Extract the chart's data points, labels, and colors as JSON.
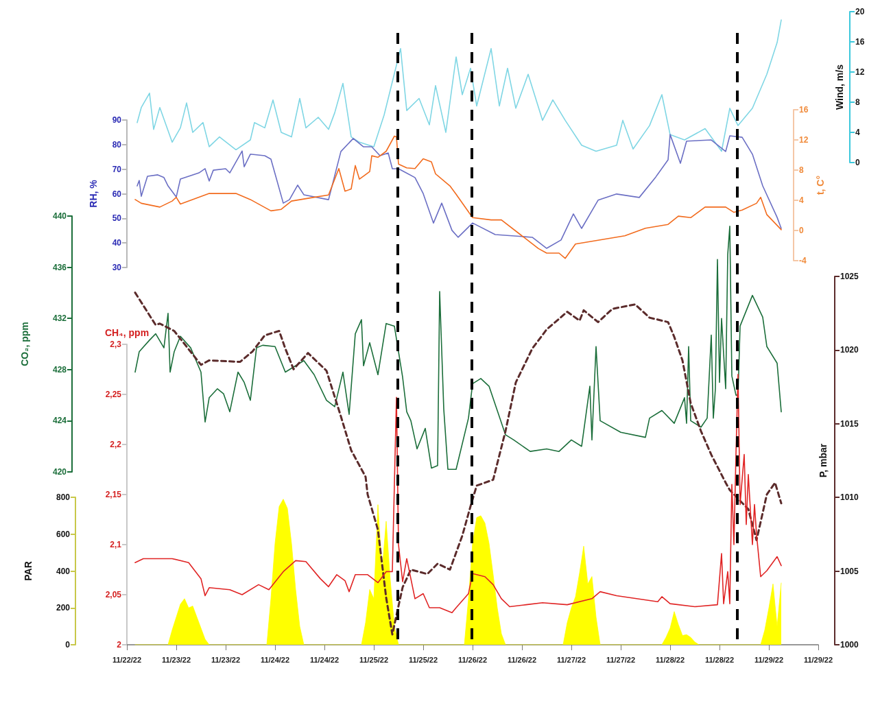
{
  "chart_data": [
    {
      "type": "line",
      "ylabel": "RH, %",
      "y2label": "t, C°",
      "y3label": "Wind, m/s",
      "tick_labels": "y",
      "xlim": [
        "--11-22T12:00",
        "--11-29T12:00"
      ],
      "ylim": [
        30,
        90
      ],
      "yticks": [
        30,
        40,
        50,
        60,
        70,
        80,
        90
      ],
      "y2lim": [
        -4,
        16
      ],
      "y2ticks": [
        -4,
        0,
        4,
        8,
        12,
        16
      ],
      "y3lim": [
        0,
        20
      ],
      "y3ticks": [
        0,
        4,
        8,
        12,
        16,
        20
      ],
      "series": [
        {
          "axis": "y3",
          "color": "#7fd6e4",
          "x": [
            "--11-22T14:30",
            "--11-22T15:30",
            "--11-22T17:30",
            "--11-22T18:30",
            "--11-22T20:00",
            "--11-22T23:00",
            "--11-23T01:00",
            "--11-23T02:30",
            "--11-23T04:00",
            "--11-23T06:30",
            "--11-23T08:00",
            "--11-23T10:30",
            "--11-23T14:30",
            "--11-23T18:00",
            "--11-23T19:00",
            "--11-23T21:30",
            "--11-23T23:30",
            "--11-24T01:30",
            "--11-24T04:00",
            "--11-24T06:00",
            "--11-24T07:30",
            "--11-24T10:30",
            "--11-24T13:00",
            "--11-24T14:30",
            "--11-24T16:30",
            "--11-24T18:30",
            "--11-24T20:30",
            "--11-25T00:00",
            "--11-25T02:30",
            "--11-25T05:00",
            "--11-25T06:30",
            "--11-25T08:00",
            "--11-25T11:00",
            "--11-25T13:30",
            "--11-25T15:00",
            "--11-25T17:30",
            "--11-25T20:00",
            "--11-25T21:30",
            "--11-25T23:30",
            "--11-26T01:00",
            "--11-26T04:30",
            "--11-26T06:30",
            "--11-26T08:30",
            "--11-26T10:30",
            "--11-26T13:30",
            "--11-26T17:00",
            "--11-26T19:30",
            "--11-26T22:30",
            "--11-27T02:30",
            "--11-27T06:00",
            "--11-27T11:00",
            "--11-27T12:30",
            "--11-27T15:00",
            "--11-27T19:00",
            "--11-27T22:00",
            "--11-28T00:00",
            "--11-28T03:30",
            "--11-28T08:30",
            "--11-28T12:30",
            "--11-28T14:30",
            "--11-28T16:30",
            "--11-28T20:00",
            "--11-28T23:30",
            "--11-29T02:00",
            "--11-29T03:00"
          ],
          "values": [
            5.3,
            7.3,
            9.2,
            4.4,
            7.3,
            2.7,
            4.6,
            7.9,
            4.0,
            5.3,
            2.1,
            3.4,
            1.7,
            3.0,
            5.3,
            4.6,
            8.3,
            4.0,
            3.4,
            8.5,
            4.6,
            6.0,
            4.4,
            6.6,
            10.5,
            3.4,
            2.7,
            2.1,
            6.3,
            11.8,
            15.1,
            6.9,
            8.5,
            5.0,
            10.2,
            4.0,
            14.0,
            9.0,
            12.5,
            7.5,
            15.1,
            7.5,
            12.5,
            7.2,
            11.7,
            5.6,
            8.3,
            5.6,
            2.3,
            1.5,
            2.3,
            5.6,
            1.8,
            4.9,
            9.0,
            3.7,
            3.0,
            4.5,
            1.5,
            7.2,
            4.9,
            7.2,
            11.7,
            15.9,
            18.9
          ]
        },
        {
          "color": "#6b6fc4",
          "x": [
            "--11-22T14:30",
            "--11-22T15:00",
            "--11-22T15:30",
            "--11-22T17:00",
            "--11-22T19:30",
            "--11-22T21:00",
            "--11-22T22:00",
            "--11-23T00:00",
            "--11-23T01:00",
            "--11-23T05:30",
            "--11-23T07:00",
            "--11-23T08:00",
            "--11-23T09:00",
            "--11-23T12:00",
            "--11-23T13:00",
            "--11-23T16:00",
            "--11-23T16:30",
            "--11-23T18:00",
            "--11-23T21:30",
            "--11-23T23:00",
            "--11-24T02:00",
            "--11-24T03:30",
            "--11-24T05:30",
            "--11-24T07:00",
            "--11-24T13:00",
            "--11-24T16:00",
            "--11-24T19:00",
            "--11-24T21:30",
            "--11-24T23:30",
            "--11-25T01:30",
            "--11-25T03:30",
            "--11-25T04:30",
            "--11-25T06:00",
            "--11-25T10:00",
            "--11-25T12:00",
            "--11-25T14:30",
            "--11-25T16:30",
            "--11-25T19:00",
            "--11-25T20:30",
            "--11-26T00:00",
            "--11-26T05:30",
            "--11-26T14:30",
            "--11-26T18:00",
            "--11-26T21:30",
            "--11-27T00:30",
            "--11-27T02:30",
            "--11-27T06:30",
            "--11-27T11:00",
            "--11-27T16:30",
            "--11-27T20:30",
            "--11-27T23:30",
            "--11-28T00:00",
            "--11-28T02:30",
            "--11-28T04:00",
            "--11-28T10:00",
            "--11-28T13:30",
            "--11-28T14:30",
            "--11-28T17:30",
            "--11-28T20:00",
            "--11-28T22:30",
            "--11-29T02:00",
            "--11-29T03:00"
          ],
          "values": [
            63.2,
            65.4,
            59.0,
            67.1,
            67.7,
            66.6,
            63.2,
            58.7,
            66.0,
            68.5,
            70.2,
            65.2,
            69.6,
            70.2,
            68.5,
            77.4,
            71.0,
            76.1,
            75.5,
            74.1,
            56.2,
            57.6,
            63.5,
            59.6,
            57.6,
            77.2,
            82.5,
            79.1,
            79.1,
            75.5,
            76.6,
            70.2,
            70.2,
            66.6,
            60.1,
            48.1,
            56.2,
            45.1,
            42.3,
            48.1,
            43.4,
            42.3,
            37.8,
            41.2,
            51.8,
            45.9,
            57.4,
            59.9,
            58.5,
            66.8,
            73.8,
            84.1,
            72.4,
            81.4,
            81.9,
            77.2,
            83.6,
            83.0,
            76.1,
            63.2,
            50.4,
            45.9
          ]
        },
        {
          "axis": "y2",
          "color": "#f26b1d",
          "x": [
            "--11-22T14:00",
            "--11-22T15:30",
            "--11-22T20:00",
            "--11-22T23:00",
            "--11-23T00:00",
            "--11-23T01:00",
            "--11-23T08:00",
            "--11-23T14:30",
            "--11-23T18:00",
            "--11-23T23:00",
            "--11-24T01:30",
            "--11-24T04:00",
            "--11-24T09:30",
            "--11-24T13:00",
            "--11-24T15:30",
            "--11-24T17:00",
            "--11-24T18:30",
            "--11-24T19:30",
            "--11-24T20:30",
            "--11-24T23:00",
            "--11-24T23:30",
            "--11-25T01:00",
            "--11-25T03:00",
            "--11-25T05:00",
            "--11-25T05:30",
            "--11-25T06:00",
            "--11-25T08:00",
            "--11-25T10:00",
            "--11-25T12:00",
            "--11-25T14:00",
            "--11-25T15:00",
            "--11-25T18:30",
            "--11-25T20:00",
            "--11-26T00:00",
            "--11-26T04:30",
            "--11-26T07:00",
            "--11-26T11:30",
            "--11-26T16:00",
            "--11-26T18:00",
            "--11-26T21:00",
            "--11-26T22:30",
            "--11-27T01:00",
            "--11-27T06:30",
            "--11-27T13:00",
            "--11-27T18:00",
            "--11-27T23:30",
            "--11-28T02:00",
            "--11-28T05:00",
            "--11-28T08:30",
            "--11-28T13:30",
            "--11-28T15:30",
            "--11-28T17:30",
            "--11-28T21:00",
            "--11-28T22:00",
            "--11-28T23:30",
            "--11-29T03:00"
          ],
          "values": [
            4.1,
            3.6,
            3.1,
            3.9,
            4.4,
            3.5,
            4.9,
            4.9,
            4.1,
            2.6,
            2.8,
            3.9,
            4.4,
            4.7,
            8.2,
            5.2,
            5.5,
            8.6,
            6.8,
            7.8,
            9.9,
            9.7,
            10.5,
            12.5,
            12.4,
            8.8,
            8.3,
            8.2,
            9.5,
            9.1,
            7.5,
            5.9,
            4.8,
            1.7,
            1.4,
            1.4,
            -0.5,
            -2.4,
            -3.0,
            -3.0,
            -3.7,
            -1.8,
            -1.3,
            -0.7,
            0.3,
            0.8,
            1.9,
            1.7,
            3.1,
            3.1,
            2.4,
            2.7,
            3.6,
            4.4,
            2.1,
            0.1
          ]
        }
      ]
    },
    {
      "type": "line",
      "ylabel": "CO₂, ppm",
      "tick_labels": "y",
      "xlim": [
        "--11-22T12:00",
        "--11-29T12:00"
      ],
      "ylim": [
        420,
        440
      ],
      "yticks": [
        420,
        424,
        428,
        432,
        436,
        440
      ],
      "series": [
        {
          "color": "#1b6e3a",
          "x": [
            "--11-22T14:00",
            "--11-22T15:00",
            "--11-22T17:30",
            "--11-22T19:00",
            "--11-22T21:00",
            "--11-22T22:00",
            "--11-22T22:30",
            "--11-22T23:30",
            "--11-23T01:00",
            "--11-23T03:30",
            "--11-23T06:00",
            "--11-23T07:00",
            "--11-23T08:00",
            "--11-23T10:00",
            "--11-23T11:30",
            "--11-23T13:00",
            "--11-23T15:00",
            "--11-23T16:30",
            "--11-23T18:00",
            "--11-23T19:30",
            "--11-23T21:00",
            "--11-24T00:00",
            "--11-24T02:30",
            "--11-24T07:00",
            "--11-24T09:30",
            "--11-24T12:30",
            "--11-24T14:30",
            "--11-24T16:30",
            "--11-24T18:00",
            "--11-24T19:30",
            "--11-24T21:00",
            "--11-24T21:30",
            "--11-24T23:00",
            "--11-25T01:00",
            "--11-25T03:00",
            "--11-25T05:00",
            "--11-25T07:00",
            "--11-25T08:00",
            "--11-25T09:00",
            "--11-25T10:30",
            "--11-25T12:30",
            "--11-25T14:00",
            "--11-25T15:30",
            "--11-25T16:00",
            "--11-25T17:00",
            "--11-25T18:00",
            "--11-25T20:00",
            "--11-25T23:00",
            "--11-26T00:00",
            "--11-26T02:00",
            "--11-26T04:00",
            "--11-26T08:00",
            "--11-26T10:00",
            "--11-26T14:00",
            "--11-26T18:00",
            "--11-26T21:00",
            "--11-27T00:00",
            "--11-27T02:30",
            "--11-27T04:30",
            "--11-27T05:00",
            "--11-27T06:00",
            "--11-27T07:00",
            "--11-27T12:00",
            "--11-27T18:00",
            "--11-27T19:00",
            "--11-27T22:00",
            "--11-28T01:00",
            "--11-28T03:30",
            "--11-28T04:00",
            "--11-28T04:30",
            "--11-28T05:00",
            "--11-28T07:30",
            "--11-28T09:00",
            "--11-28T10:00",
            "--11-28T10:30",
            "--11-28T11:00",
            "--11-28T11:30",
            "--11-28T12:00",
            "--11-28T12:30",
            "--11-28T13:30",
            "--11-28T14:00",
            "--11-28T14:30",
            "--11-28T15:00",
            "--11-28T16:00",
            "--11-28T16:30",
            "--11-28T17:00",
            "--11-28T20:00",
            "--11-28T22:30",
            "--11-28T23:30",
            "--11-29T02:00",
            "--11-29T03:00"
          ],
          "values": [
            427.8,
            429.4,
            430.3,
            430.8,
            429.7,
            432.4,
            427.8,
            429.4,
            430.6,
            429.7,
            427.8,
            423.9,
            425.8,
            426.5,
            426.1,
            424.7,
            427.8,
            427.0,
            425.6,
            429.7,
            429.9,
            429.8,
            427.8,
            428.7,
            427.6,
            425.6,
            425.1,
            427.8,
            424.5,
            430.8,
            431.9,
            428.3,
            430.1,
            427.6,
            431.6,
            431.4,
            427.4,
            424.7,
            424.0,
            421.8,
            423.4,
            420.3,
            420.5,
            434.1,
            424.9,
            420.2,
            420.2,
            424.2,
            426.9,
            427.3,
            426.7,
            422.9,
            422.5,
            421.6,
            421.8,
            421.6,
            422.5,
            422.0,
            426.7,
            422.5,
            429.8,
            424.0,
            423.1,
            422.7,
            424.2,
            424.8,
            423.8,
            425.8,
            423.8,
            429.8,
            424.0,
            423.5,
            424.2,
            430.7,
            424.2,
            426.5,
            436.6,
            427.0,
            432.0,
            426.5,
            437.0,
            439.2,
            427.5,
            426.0,
            426.0,
            431.4,
            433.8,
            432.1,
            429.8,
            428.5,
            424.7
          ]
        }
      ]
    },
    {
      "type": "line",
      "ylabel": "CH₄, ppm",
      "y2label": "P, mbar",
      "y3label": "PAR",
      "xlim": [
        "--11-22T12:00",
        "--11-29T12:00"
      ],
      "xticks": [
        {
          "value": "--11-22T12:00",
          "label": "11/22/22"
        },
        {
          "value": "--11-23T00:00",
          "label": "11/23/22"
        },
        {
          "value": "--11-23T12:00",
          "label": "11/23/22"
        },
        {
          "value": "--11-24T00:00",
          "label": "11/24/22"
        },
        {
          "value": "--11-24T12:00",
          "label": "11/24/22"
        },
        {
          "value": "--11-25T00:00",
          "label": "11/25/22"
        },
        {
          "value": "--11-25T12:00",
          "label": "11/25/22"
        },
        {
          "value": "--11-26T00:00",
          "label": "11/26/22"
        },
        {
          "value": "--11-26T12:00",
          "label": "11/26/22"
        },
        {
          "value": "--11-27T00:00",
          "label": "11/27/22"
        },
        {
          "value": "--11-27T12:00",
          "label": "11/27/22"
        },
        {
          "value": "--11-28T00:00",
          "label": "11/28/22"
        },
        {
          "value": "--11-28T12:00",
          "label": "11/28/22"
        },
        {
          "value": "--11-29T00:00",
          "label": "11/29/22"
        },
        {
          "value": "--11-29T12:00",
          "label": "11/29/22"
        }
      ],
      "ylim": [
        2,
        2.3
      ],
      "yticks": [
        2,
        {
          "value": 2.05,
          "label": "2,05"
        },
        {
          "value": 2.1,
          "label": "2,1"
        },
        {
          "value": 2.15,
          "label": "2,15"
        },
        {
          "value": 2.2,
          "label": "2,2"
        },
        {
          "value": 2.25,
          "label": "2,25"
        },
        {
          "value": 2.3,
          "label": "2,3"
        }
      ],
      "y2lim": [
        1000,
        1025
      ],
      "y2ticks": [
        1000,
        1005,
        1010,
        1015,
        1020,
        1025
      ],
      "y3lim": [
        0,
        800
      ],
      "y3ticks": [
        0,
        200,
        400,
        600,
        800
      ],
      "ref_lines": [
        {
          "axis": "x",
          "value": "--11-25T05:50",
          "color": "#000000",
          "line_style": "dashed"
        },
        {
          "axis": "x",
          "value": "--11-25T23:50",
          "color": "#000000",
          "line_style": "dashed"
        },
        {
          "axis": "x",
          "value": "--11-28T16:20",
          "color": "#000000",
          "line_style": "dashed"
        }
      ],
      "series": [
        {
          "type": "area",
          "axis": "y3",
          "color": "#ffff00",
          "x": [
            "--11-22T14:00",
            "--11-22T22:00",
            "--11-22T23:00",
            "--11-23T00:00",
            "--11-23T01:00",
            "--11-23T02:00",
            "--11-23T03:00",
            "--11-23T04:00",
            "--11-23T05:00",
            "--11-23T06:00",
            "--11-23T07:00",
            "--11-23T08:00",
            "--11-23T22:00",
            "--11-23T23:00",
            "--11-24T00:00",
            "--11-24T01:00",
            "--11-24T02:00",
            "--11-24T03:00",
            "--11-24T04:00",
            "--11-24T05:00",
            "--11-24T06:00",
            "--11-24T07:00",
            "--11-24T21:00",
            "--11-24T22:00",
            "--11-24T23:00",
            "--11-25T00:00",
            "--11-25T01:00",
            "--11-25T02:00",
            "--11-25T03:00",
            "--11-25T04:00",
            "--11-25T05:00",
            "--11-25T06:00",
            "--11-25T22:00",
            "--11-25T23:00",
            "--11-26T00:00",
            "--11-26T01:00",
            "--11-26T02:00",
            "--11-26T03:00",
            "--11-26T04:00",
            "--11-26T05:00",
            "--11-26T06:00",
            "--11-26T07:00",
            "--11-26T08:00",
            "--11-26T22:00",
            "--11-26T23:00",
            "--11-27T00:00",
            "--11-27T01:00",
            "--11-27T02:00",
            "--11-27T03:00",
            "--11-27T04:00",
            "--11-27T05:00",
            "--11-27T06:00",
            "--11-27T07:00",
            "--11-27T22:00",
            "--11-27T23:00",
            "--11-28T00:00",
            "--11-28T01:00",
            "--11-28T02:00",
            "--11-28T03:00",
            "--11-28T04:00",
            "--11-28T05:00",
            "--11-28T06:00",
            "--11-28T07:00",
            "--11-28T22:00",
            "--11-28T23:00",
            "--11-29T00:00",
            "--11-29T01:00",
            "--11-29T02:00",
            "--11-29T03:00"
          ],
          "values": [
            0,
            0,
            80,
            150,
            220,
            250,
            200,
            210,
            150,
            90,
            30,
            0,
            0,
            250,
            550,
            750,
            790,
            740,
            550,
            300,
            100,
            0,
            0,
            120,
            300,
            250,
            760,
            400,
            670,
            350,
            100,
            0,
            0,
            250,
            550,
            690,
            700,
            660,
            550,
            380,
            200,
            60,
            0,
            0,
            120,
            200,
            260,
            390,
            535,
            330,
            370,
            150,
            0,
            0,
            40,
            90,
            180,
            110,
            50,
            55,
            40,
            15,
            0,
            0,
            80,
            200,
            330,
            100,
            335
          ]
        },
        {
          "axis": "y2",
          "color": "#5b2b2b",
          "line_style": "dashed",
          "x": [
            "--11-22T14:00",
            "--11-22T19:00",
            "--11-22T20:00",
            "--11-22T23:30",
            "--11-23T06:00",
            "--11-23T08:00",
            "--11-23T15:30",
            "--11-23T18:30",
            "--11-23T21:30",
            "--11-24T01:00",
            "--11-24T02:30",
            "--11-24T04:30",
            "--11-24T08:00",
            "--11-24T12:30",
            "--11-24T16:00",
            "--11-24T18:30",
            "--11-24T22:00",
            "--11-24T22:30",
            "--11-25T01:00",
            "--11-25T03:00",
            "--11-25T04:30",
            "--11-25T05:30",
            "--11-25T07:00",
            "--11-25T09:00",
            "--11-25T13:00",
            "--11-25T15:30",
            "--11-25T18:30",
            "--11-25T21:30",
            "--11-25T23:30",
            "--11-26T01:00",
            "--11-26T05:00",
            "--11-26T08:00",
            "--11-26T10:30",
            "--11-26T14:30",
            "--11-26T18:00",
            "--11-26T23:00",
            "--11-27T02:00",
            "--11-27T03:00",
            "--11-27T06:30",
            "--11-27T10:00",
            "--11-27T15:30",
            "--11-27T19:00",
            "--11-27T23:30",
            "--11-28T01:00",
            "--11-28T03:00",
            "--11-28T05:00",
            "--11-28T07:30",
            "--11-28T10:00",
            "--11-28T13:30",
            "--11-28T14:30",
            "--11-28T19:00",
            "--11-28T21:00",
            "--11-28T23:30",
            "--11-29T01:30",
            "--11-29T03:00"
          ],
          "values": [
            1023.9,
            1021.7,
            1021.8,
            1021.3,
            1019.0,
            1019.3,
            1019.2,
            1019.9,
            1021.0,
            1021.3,
            1020.1,
            1018.7,
            1019.8,
            1018.6,
            1015.5,
            1013.2,
            1011.4,
            1010.2,
            1007.8,
            1003.2,
            1000.7,
            1002.0,
            1003.9,
            1005.1,
            1004.8,
            1005.5,
            1005.1,
            1007.4,
            1009.4,
            1010.8,
            1011.2,
            1014.5,
            1017.8,
            1020.1,
            1021.4,
            1022.6,
            1022.0,
            1022.7,
            1021.9,
            1022.8,
            1023.1,
            1022.2,
            1021.9,
            1020.9,
            1019.3,
            1016.4,
            1014.5,
            1012.9,
            1011.0,
            1010.5,
            1009.2,
            1007.1,
            1010.2,
            1011.0,
            1009.6
          ]
        },
        {
          "color": "#e02424",
          "x": [
            "--11-22T14:00",
            "--11-22T16:00",
            "--11-22T20:00",
            "--11-22T23:00",
            "--11-23T02:00",
            "--11-23T03:00",
            "--11-23T06:00",
            "--11-23T07:00",
            "--11-23T08:00",
            "--11-23T13:00",
            "--11-23T16:00",
            "--11-23T20:00",
            "--11-23T22:30",
            "--11-24T02:00",
            "--11-24T05:00",
            "--11-24T07:30",
            "--11-24T11:00",
            "--11-24T13:00",
            "--11-24T15:00",
            "--11-24T17:00",
            "--11-24T18:00",
            "--11-24T19:30",
            "--11-24T22:30",
            "--11-25T01:00",
            "--11-25T03:00",
            "--11-25T04:30",
            "--11-25T05:30",
            "--11-25T06:00",
            "--11-25T07:00",
            "--11-25T08:00",
            "--11-25T10:00",
            "--11-25T12:00",
            "--11-25T13:30",
            "--11-25T16:00",
            "--11-25T19:00",
            "--11-25T20:00",
            "--11-25T23:00",
            "--11-26T00:00",
            "--11-26T03:00",
            "--11-26T05:00",
            "--11-26T07:00",
            "--11-26T09:00",
            "--11-26T13:00",
            "--11-26T17:00",
            "--11-26T23:00",
            "--11-27T05:00",
            "--11-27T07:00",
            "--11-27T11:00",
            "--11-27T21:00",
            "--11-27T22:00",
            "--11-28T00:00",
            "--11-28T06:00",
            "--11-28T11:30",
            "--11-28T12:30",
            "--11-28T13:00",
            "--11-28T14:00",
            "--11-28T14:30",
            "--11-28T15:00",
            "--11-28T15:30",
            "--11-28T16:00",
            "--11-28T16:30",
            "--11-28T17:00",
            "--11-28T18:00",
            "--11-28T18:30",
            "--11-28T19:00",
            "--11-28T20:00",
            "--11-28T20:30",
            "--11-28T21:00",
            "--11-28T22:00",
            "--11-28T23:30",
            "--11-29T02:00",
            "--11-29T03:00"
          ],
          "values": [
            2.082,
            2.086,
            2.086,
            2.086,
            2.083,
            2.082,
            2.066,
            2.049,
            2.057,
            2.055,
            2.05,
            2.06,
            2.055,
            2.073,
            2.084,
            2.083,
            2.066,
            2.058,
            2.07,
            2.064,
            2.053,
            2.07,
            2.07,
            2.062,
            2.073,
            2.073,
            2.247,
            2.1,
            2.063,
            2.086,
            2.046,
            2.051,
            2.037,
            2.037,
            2.032,
            2.037,
            2.051,
            2.071,
            2.068,
            2.06,
            2.046,
            2.038,
            2.04,
            2.042,
            2.04,
            2.046,
            2.053,
            2.049,
            2.043,
            2.048,
            2.041,
            2.038,
            2.04,
            2.091,
            2.041,
            2.073,
            2.041,
            2.16,
            2.1,
            2.19,
            2.27,
            2.14,
            2.19,
            2.12,
            2.17,
            2.1,
            2.14,
            2.11,
            2.068,
            2.074,
            2.088,
            2.079
          ]
        }
      ]
    }
  ]
}
